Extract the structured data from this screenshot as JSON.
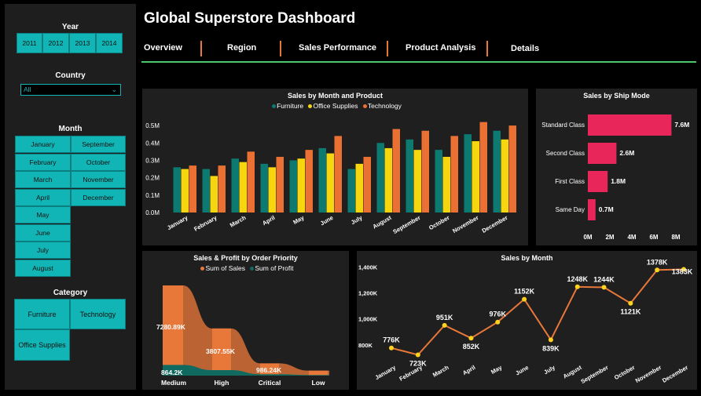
{
  "sidebar": {
    "year_title": "Year",
    "years": [
      "2011",
      "2012",
      "2013",
      "2014"
    ],
    "country_title": "Country",
    "country_value": "All",
    "month_title": "Month",
    "months_left": [
      "January",
      "February",
      "March",
      "April",
      "May",
      "June",
      "July",
      "August"
    ],
    "months_right": [
      "September",
      "October",
      "November",
      "December"
    ],
    "category_title": "Category",
    "categories": [
      "Furniture",
      "Technology",
      "Office Supplies"
    ]
  },
  "header": {
    "title": "Global Superstore Dashboard",
    "tabs": [
      "Overview",
      "Region",
      "Sales Performance",
      "Product Analysis",
      "Details"
    ]
  },
  "colors": {
    "accent": "#12b5b5",
    "furniture": "#0d7a72",
    "office": "#f5d60f",
    "technology": "#ea7033",
    "ship": "#e8265a",
    "sales": "#e8773a",
    "profit": "#106a60",
    "line_point": "#ffd21f",
    "tab_underline": "#4cc86a"
  },
  "chart_data": [
    {
      "type": "bar",
      "title": "Sales by Month and Product",
      "categories": [
        "January",
        "February",
        "March",
        "April",
        "May",
        "June",
        "July",
        "August",
        "September",
        "October",
        "November",
        "December"
      ],
      "series": [
        {
          "name": "Furniture",
          "values": [
            0.26,
            0.25,
            0.31,
            0.28,
            0.3,
            0.37,
            0.25,
            0.4,
            0.42,
            0.36,
            0.45,
            0.47
          ]
        },
        {
          "name": "Office Supplies",
          "values": [
            0.25,
            0.21,
            0.29,
            0.26,
            0.31,
            0.34,
            0.28,
            0.37,
            0.36,
            0.32,
            0.41,
            0.42
          ]
        },
        {
          "name": "Technology",
          "values": [
            0.27,
            0.27,
            0.35,
            0.32,
            0.36,
            0.44,
            0.32,
            0.48,
            0.47,
            0.44,
            0.52,
            0.5
          ]
        }
      ],
      "yticks": [
        "0.0M",
        "0.1M",
        "0.2M",
        "0.3M",
        "0.4M",
        "0.5M"
      ],
      "ylim": [
        0,
        0.55
      ]
    },
    {
      "type": "bar",
      "title": "Sales by Ship Mode",
      "categories": [
        "Standard Class",
        "Second Class",
        "First Class",
        "Same Day"
      ],
      "values": [
        7.6,
        2.6,
        1.8,
        0.7
      ],
      "labels": [
        "7.6M",
        "2.6M",
        "1.8M",
        "0.7M"
      ],
      "xticks": [
        "0M",
        "2M",
        "4M",
        "6M",
        "8M"
      ],
      "xlim": [
        0,
        8
      ]
    },
    {
      "type": "area",
      "title": "Sales & Profit by Order Priority",
      "categories": [
        "Medium",
        "High",
        "Critical",
        "Low"
      ],
      "series": [
        {
          "name": "Sum of Sales",
          "values": [
            7280.89,
            3807.55,
            986.24,
            400
          ]
        },
        {
          "name": "Sum of Profit",
          "values": [
            864.2,
            440,
            110,
            50
          ]
        }
      ],
      "labels": {
        "medium_sales": "7280.89K",
        "medium_profit": "864.2K",
        "high_sales": "3807.55K",
        "critical_sales": "986.24K"
      }
    },
    {
      "type": "line",
      "title": "Sales by Month",
      "categories": [
        "January",
        "February",
        "March",
        "April",
        "May",
        "June",
        "July",
        "August",
        "September",
        "October",
        "November",
        "December"
      ],
      "values": [
        776,
        723,
        951,
        852,
        976,
        1152,
        839,
        1248,
        1244,
        1121,
        1378,
        1383
      ],
      "labels": [
        "776K",
        "723K",
        "951K",
        "852K",
        "976K",
        "1152K",
        "839K",
        "1248K",
        "1244K",
        "1121K",
        "1378K",
        "1383K"
      ],
      "yticks": [
        "800K",
        "1,000K",
        "1,200K",
        "1,400K"
      ],
      "ylim": [
        720,
        1410
      ]
    }
  ]
}
